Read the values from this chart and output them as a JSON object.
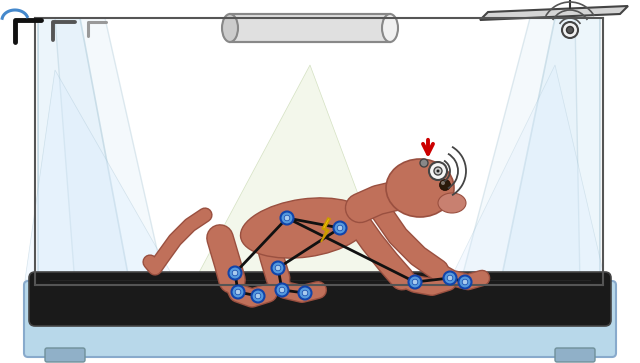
{
  "fig_width": 6.4,
  "fig_height": 3.63,
  "dpi": 100,
  "bg_color": "#ffffff",
  "monkey_color": "#c0705a",
  "monkey_edge": "#9a5040",
  "marker_blue": "#5599dd",
  "lightning_yellow": "#ffdd00",
  "red_arrow": "#cc0000",
  "glass_fill": "#ddeef8",
  "glass_edge": "#99bbcc",
  "cone_green_fill": "#e8f0d8",
  "cone_blue_fill": "#ddeeff",
  "tread_dark": "#1a1a1a",
  "tread_light": "#b8d8ea",
  "tread_edge": "#88aacc"
}
